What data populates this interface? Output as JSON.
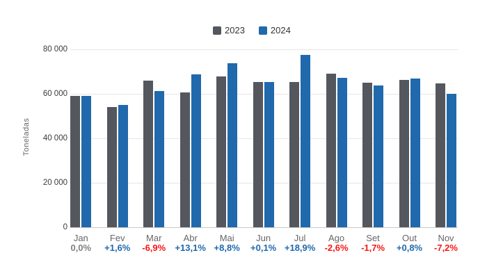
{
  "chart_data": {
    "type": "bar",
    "categories": [
      "Jan",
      "Fev",
      "Mar",
      "Abr",
      "Mai",
      "Jun",
      "Jul",
      "Ago",
      "Set",
      "Out",
      "Nov"
    ],
    "series": [
      {
        "name": "2023",
        "color": "#54575d",
        "values": [
          59200,
          54100,
          65800,
          60700,
          67700,
          65300,
          65200,
          69000,
          64900,
          66300,
          64700
        ]
      },
      {
        "name": "2024",
        "color": "#2069ac",
        "values": [
          59200,
          54900,
          61300,
          68700,
          73700,
          65350,
          77500,
          67200,
          63800,
          66800,
          60000
        ]
      }
    ],
    "change_labels": [
      {
        "text": "0,0%",
        "sign": "zero"
      },
      {
        "text": "+1,6%",
        "sign": "positive"
      },
      {
        "text": "-6,9%",
        "sign": "negative"
      },
      {
        "text": "+13,1%",
        "sign": "positive"
      },
      {
        "text": "+8,8%",
        "sign": "positive"
      },
      {
        "text": "+0,1%",
        "sign": "positive"
      },
      {
        "text": "+18,9%",
        "sign": "positive"
      },
      {
        "text": "-2,6%",
        "sign": "negative"
      },
      {
        "text": "-1,7%",
        "sign": "negative"
      },
      {
        "text": "+0,8%",
        "sign": "positive"
      },
      {
        "text": "-7,2%",
        "sign": "negative"
      }
    ],
    "ylabel": "Toneladas",
    "ylim": [
      0,
      80000
    ],
    "y_ticks": [
      "80 000",
      "60 000",
      "40 000",
      "20 000",
      "0"
    ],
    "grid": true,
    "legend_position": "top"
  },
  "colors": {
    "positive_pct": "#2069ac",
    "negative_pct": "#fa1414",
    "zero_pct": "#808080",
    "gridline": "#e6e6e6",
    "axis_line": "#c9c9c9",
    "month_label": "#666666",
    "y_tick_label": "#3a3a3a"
  }
}
